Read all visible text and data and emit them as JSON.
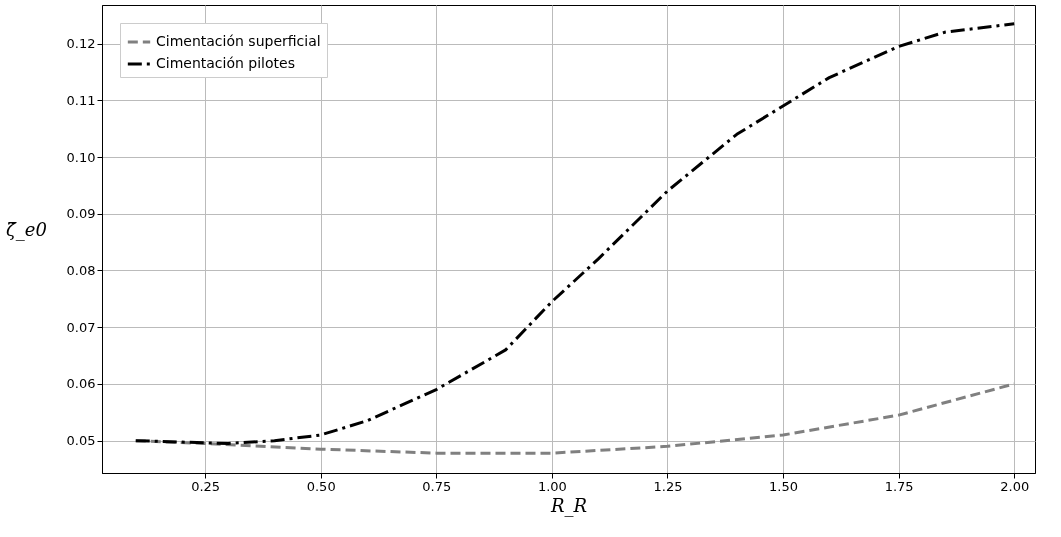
{
  "chart_data": {
    "type": "line",
    "xlabel": "R_R",
    "ylabel": "ζ̃_e0",
    "xlim": [
      0.027,
      2.045
    ],
    "xticks": [
      0.25,
      {
        "value": 0.5,
        "label": "0.50"
      },
      0.75,
      {
        "value": 1,
        "label": "1.00"
      },
      1.25,
      {
        "value": 1.5,
        "label": "1.50"
      },
      1.75,
      {
        "value": 2,
        "label": "2.00"
      }
    ],
    "ylim": [
      0.0443,
      0.1268
    ],
    "yticks": [
      0.05,
      0.06,
      0.07,
      0.08,
      0.09,
      {
        "value": 0.1,
        "label": "0.10"
      },
      0.11,
      0.12
    ],
    "grid": true,
    "legend": "top left",
    "series": [
      {
        "name": "Cimentación superficial",
        "color": "#808080",
        "line_style": "dashed",
        "x": [
          0.1,
          0.25,
          0.5,
          0.75,
          1.0,
          1.25,
          1.5,
          1.75,
          2.0
        ],
        "values": [
          0.05,
          0.0495,
          0.0485,
          0.0478,
          0.0478,
          0.049,
          0.051,
          0.0545,
          0.06
        ]
      },
      {
        "name": "Cimentación pilotes",
        "color": "#000000",
        "line_style": "dashdot",
        "x": [
          0.1,
          0.3,
          0.4,
          0.5,
          0.6,
          0.75,
          0.9,
          1.0,
          1.1,
          1.25,
          1.4,
          1.5,
          1.6,
          1.75,
          1.85,
          2.0
        ],
        "values": [
          0.05,
          0.0495,
          0.05,
          0.051,
          0.0535,
          0.059,
          0.066,
          0.0745,
          0.082,
          0.094,
          0.104,
          0.109,
          0.114,
          0.1195,
          0.122,
          0.1235
        ]
      }
    ]
  }
}
